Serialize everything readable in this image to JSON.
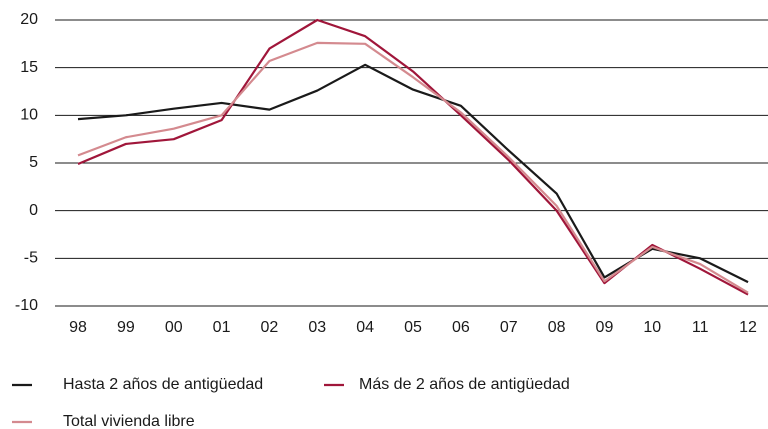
{
  "chart_data": {
    "type": "line",
    "categories": [
      "98",
      "99",
      "00",
      "01",
      "02",
      "03",
      "04",
      "05",
      "06",
      "07",
      "08",
      "09",
      "10",
      "11",
      "12"
    ],
    "series": [
      {
        "name": "Hasta 2 años de antigüedad",
        "color": "#1a1a1a",
        "values": [
          9.6,
          10.0,
          10.7,
          11.3,
          10.6,
          12.6,
          15.3,
          12.7,
          11.0,
          6.3,
          1.8,
          -7.0,
          -4.0,
          -5.0,
          -7.5
        ]
      },
      {
        "name": "Más de 2 años de antigüedad",
        "color": "#a0163a",
        "values": [
          4.9,
          7.0,
          7.5,
          9.5,
          17.0,
          20.0,
          18.3,
          14.6,
          10.0,
          5.3,
          0.0,
          -7.6,
          -3.6,
          -6.1,
          -8.8
        ]
      },
      {
        "name": "Total vivienda libre",
        "color": "#d48a8f",
        "values": [
          5.8,
          7.7,
          8.6,
          10.0,
          15.7,
          17.6,
          17.5,
          14.0,
          10.3,
          5.6,
          0.5,
          -7.4,
          -3.8,
          -5.6,
          -8.6
        ]
      }
    ],
    "ylim": [
      -10,
      20
    ],
    "yticks": [
      -10,
      -5,
      0,
      5,
      10,
      15,
      20
    ],
    "grid": true
  }
}
